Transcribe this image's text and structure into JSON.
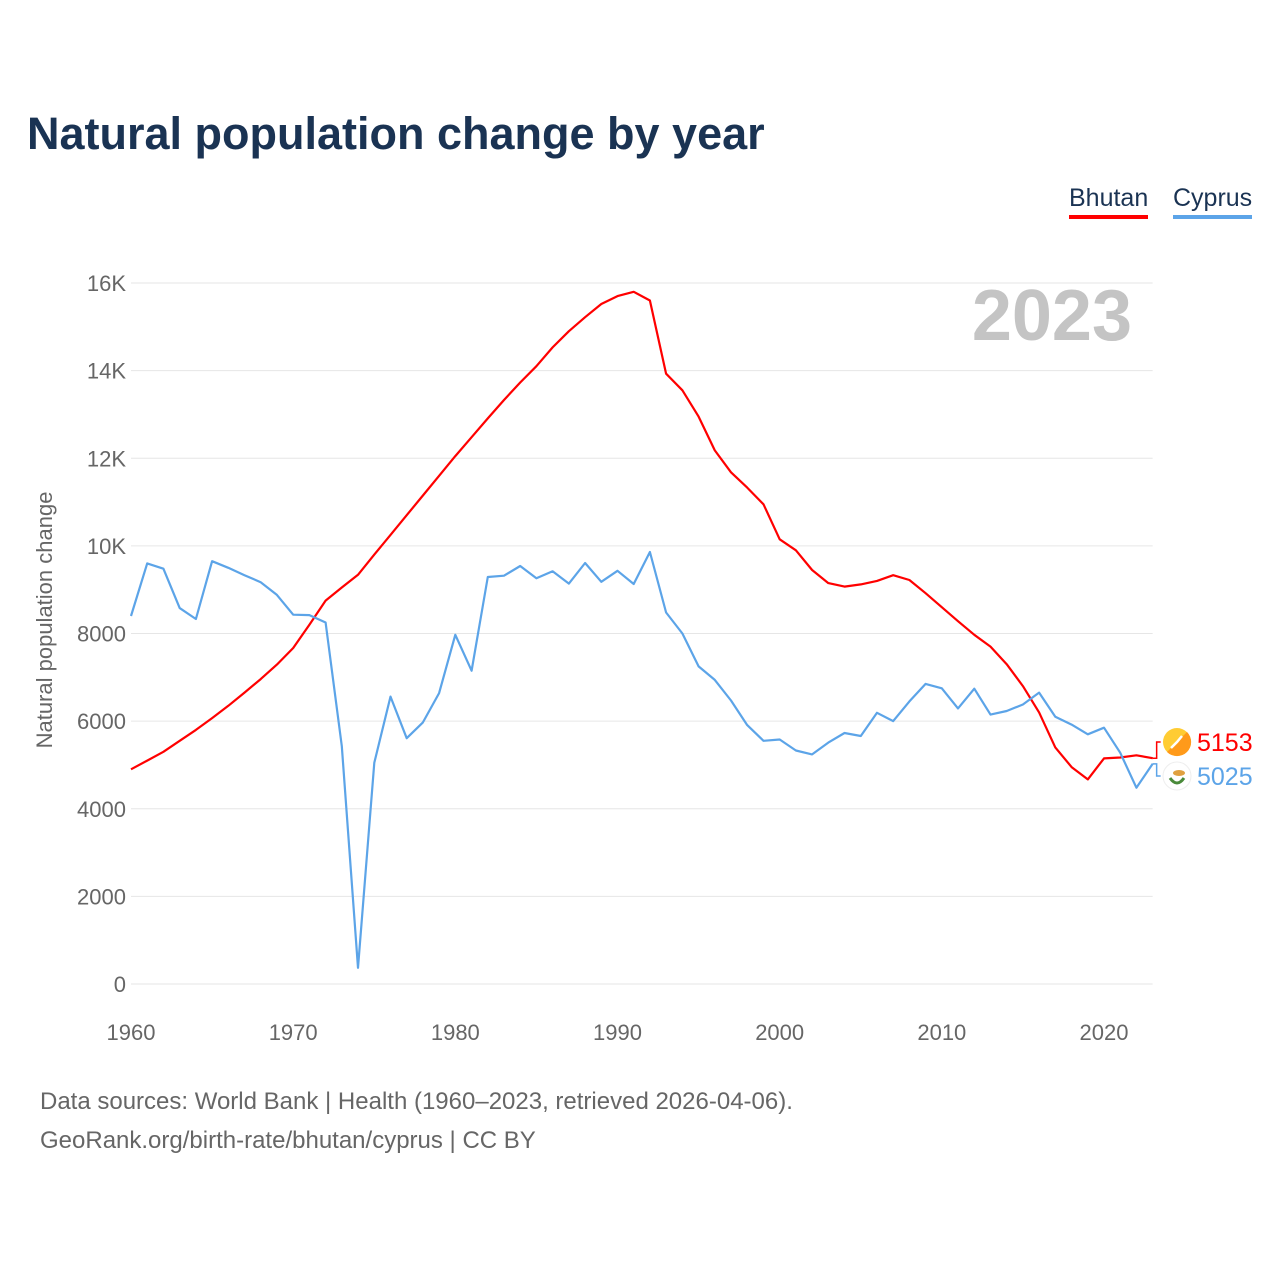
{
  "title": "Natural population change by year",
  "footer": {
    "line1": "Data sources: World Bank | Health (1960–2023, retrieved 2026-04-06).",
    "line2": "GeoRank.org/birth-rate/bhutan/cyprus | CC BY"
  },
  "chart_data": {
    "type": "line",
    "title": "Natural population change by year",
    "xlabel": "",
    "ylabel": "Natural population change",
    "year_label": "2023",
    "xlim": [
      1960,
      2023
    ],
    "ylim": [
      0,
      16000
    ],
    "x_ticks": [
      1960,
      1970,
      1980,
      1990,
      2000,
      2010,
      2020
    ],
    "y_ticks": [
      0,
      2000,
      4000,
      6000,
      8000,
      10000,
      12000,
      14000,
      16000
    ],
    "y_tick_labels": [
      "0",
      "2000",
      "4000",
      "6000",
      "8000",
      "10K",
      "12K",
      "14K",
      "16K"
    ],
    "grid": true,
    "legend": "top-right",
    "x_start": 1960,
    "series": [
      {
        "name": "Bhutan",
        "color": "#ff0000",
        "flag_icon": "bhutan-flag-icon",
        "end_label": "5153",
        "values": [
          4900,
          5100,
          5300,
          5550,
          5800,
          6070,
          6350,
          6650,
          6960,
          7290,
          7670,
          8200,
          8750,
          9050,
          9340,
          9800,
          10250,
          10700,
          11150,
          11600,
          12050,
          12480,
          12910,
          13330,
          13730,
          14100,
          14530,
          14900,
          15220,
          15520,
          15700,
          15800,
          15600,
          13930,
          13550,
          12950,
          12180,
          11680,
          11330,
          10950,
          10150,
          9900,
          9450,
          9150,
          9070,
          9120,
          9200,
          9330,
          9220,
          8920,
          8600,
          8280,
          7970,
          7700,
          7300,
          6800,
          6200,
          5400,
          4950,
          4670,
          5150,
          5170,
          5220,
          5153
        ]
      },
      {
        "name": "Cyprus",
        "color": "#5ca4e8",
        "flag_icon": "cyprus-flag-icon",
        "end_label": "5025",
        "values": [
          8400,
          9600,
          9480,
          8580,
          8330,
          9650,
          9500,
          9330,
          9170,
          8880,
          8430,
          8420,
          8250,
          5430,
          370,
          5050,
          6560,
          5610,
          5970,
          6640,
          7970,
          7150,
          9290,
          9320,
          9540,
          9260,
          9420,
          9140,
          9610,
          9180,
          9430,
          9130,
          9860,
          8480,
          8000,
          7250,
          6940,
          6470,
          5910,
          5550,
          5580,
          5330,
          5240,
          5510,
          5730,
          5660,
          6190,
          6000,
          6450,
          6850,
          6750,
          6290,
          6740,
          6150,
          6230,
          6380,
          6650,
          6100,
          5920,
          5700,
          5850,
          5280,
          4480,
          5025
        ]
      }
    ]
  }
}
